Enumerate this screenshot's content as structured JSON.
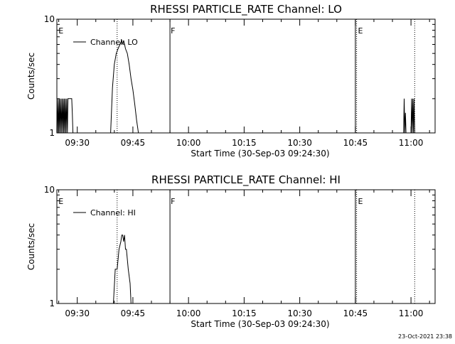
{
  "chart_data": [
    {
      "type": "line",
      "title": "RHESSI PARTICLE_RATE Channel: LO",
      "xlabel": "Start Time (30-Sep-03 09:24:30)",
      "ylabel": "Counts/sec",
      "yscale": "log",
      "ylim": [
        1,
        10
      ],
      "xlim": [
        "09:24:30",
        "11:06:30"
      ],
      "y_tick_labels": [
        "1",
        "10"
      ],
      "x_tick_labels": [
        "09:30",
        "09:45",
        "10:00",
        "10:15",
        "10:30",
        "10:45",
        "11:00"
      ],
      "legend": {
        "position": "top-left",
        "entries": [
          "Channel: LO"
        ]
      },
      "annotations": [
        {
          "text": "E",
          "x": "09:24:45"
        },
        {
          "text": "F",
          "x": "09:55:00"
        },
        {
          "text": "E",
          "x": "10:45:30"
        }
      ],
      "vertical_lines": [
        {
          "x": "09:40:45",
          "style": "dotted"
        },
        {
          "x": "09:55:00",
          "style": "solid"
        },
        {
          "x": "10:45:00",
          "style": "solid"
        },
        {
          "x": "10:45:20",
          "style": "dotted"
        },
        {
          "x": "11:01:00",
          "style": "dotted"
        }
      ],
      "series": [
        {
          "name": "Channel: LO",
          "segments": [
            {
              "x": [
                "09:24:30",
                "09:24:40",
                "09:24:50",
                "09:25:00",
                "09:25:10",
                "09:25:20",
                "09:25:30",
                "09:25:40",
                "09:25:50",
                "09:26:00",
                "09:26:10",
                "09:26:20",
                "09:26:30",
                "09:26:40",
                "09:26:50",
                "09:27:00",
                "09:27:10",
                "09:27:20",
                "09:27:30",
                "09:27:45",
                "09:28:00",
                "09:28:15",
                "09:28:30",
                "09:28:40",
                "09:28:50"
              ],
              "y": [
                2,
                1,
                2,
                1,
                2,
                1,
                2,
                1,
                2,
                1,
                2,
                1,
                2,
                1,
                2,
                1,
                2,
                1,
                2,
                2,
                2,
                2,
                2,
                1.5,
                1
              ]
            },
            {
              "x": [
                "09:39:00",
                "09:39:30",
                "09:40:00",
                "09:40:30",
                "09:41:00",
                "09:41:30",
                "09:42:00",
                "09:42:15",
                "09:42:30",
                "09:42:45",
                "09:43:00",
                "09:43:30",
                "09:44:00",
                "09:44:30",
                "09:45:00",
                "09:45:30",
                "09:46:00",
                "09:46:30"
              ],
              "y": [
                1,
                2.5,
                4,
                5,
                5.5,
                6,
                6.5,
                6,
                6.5,
                6,
                5.5,
                5,
                4,
                3,
                2.4,
                1.8,
                1.3,
                1
              ]
            },
            {
              "x": [
                "10:58:00",
                "10:58:10",
                "10:58:20",
                "10:58:30",
                "10:58:40"
              ],
              "y": [
                1,
                2,
                1,
                1.5,
                1
              ]
            },
            {
              "x": [
                "11:00:00",
                "11:00:10",
                "11:00:20",
                "11:00:30",
                "11:00:40",
                "11:00:50",
                "11:01:00"
              ],
              "y": [
                1,
                2,
                1,
                2,
                1,
                2,
                1
              ]
            }
          ]
        }
      ]
    },
    {
      "type": "line",
      "title": "RHESSI PARTICLE_RATE Channel: HI",
      "xlabel": "Start Time (30-Sep-03 09:24:30)",
      "ylabel": "Counts/sec",
      "yscale": "log",
      "ylim": [
        1,
        10
      ],
      "xlim": [
        "09:24:30",
        "11:06:30"
      ],
      "y_tick_labels": [
        "1",
        "10"
      ],
      "x_tick_labels": [
        "09:30",
        "09:45",
        "10:00",
        "10:15",
        "10:30",
        "10:45",
        "11:00"
      ],
      "legend": {
        "position": "top-left",
        "entries": [
          "Channel: HI"
        ]
      },
      "annotations": [
        {
          "text": "E",
          "x": "09:24:45"
        },
        {
          "text": "F",
          "x": "09:55:00"
        },
        {
          "text": "E",
          "x": "10:45:30"
        }
      ],
      "vertical_lines": [
        {
          "x": "09:40:45",
          "style": "dotted"
        },
        {
          "x": "09:55:00",
          "style": "solid"
        },
        {
          "x": "10:45:00",
          "style": "solid"
        },
        {
          "x": "10:45:20",
          "style": "dotted"
        },
        {
          "x": "11:01:00",
          "style": "dotted"
        }
      ],
      "series": [
        {
          "name": "Channel: HI",
          "segments": [
            {
              "x": [
                "09:39:45",
                "09:40:15",
                "09:40:45",
                "09:41:15",
                "09:41:45",
                "09:42:00",
                "09:42:15",
                "09:42:30",
                "09:42:45",
                "09:43:00",
                "09:43:15",
                "09:43:45",
                "09:44:15",
                "09:44:30"
              ],
              "y": [
                1,
                2,
                2,
                3,
                3.5,
                4,
                4,
                3.5,
                4,
                3,
                3,
                2,
                1.5,
                1
              ]
            }
          ]
        }
      ]
    }
  ],
  "timestamp": "23-Oct-2021 23:38"
}
